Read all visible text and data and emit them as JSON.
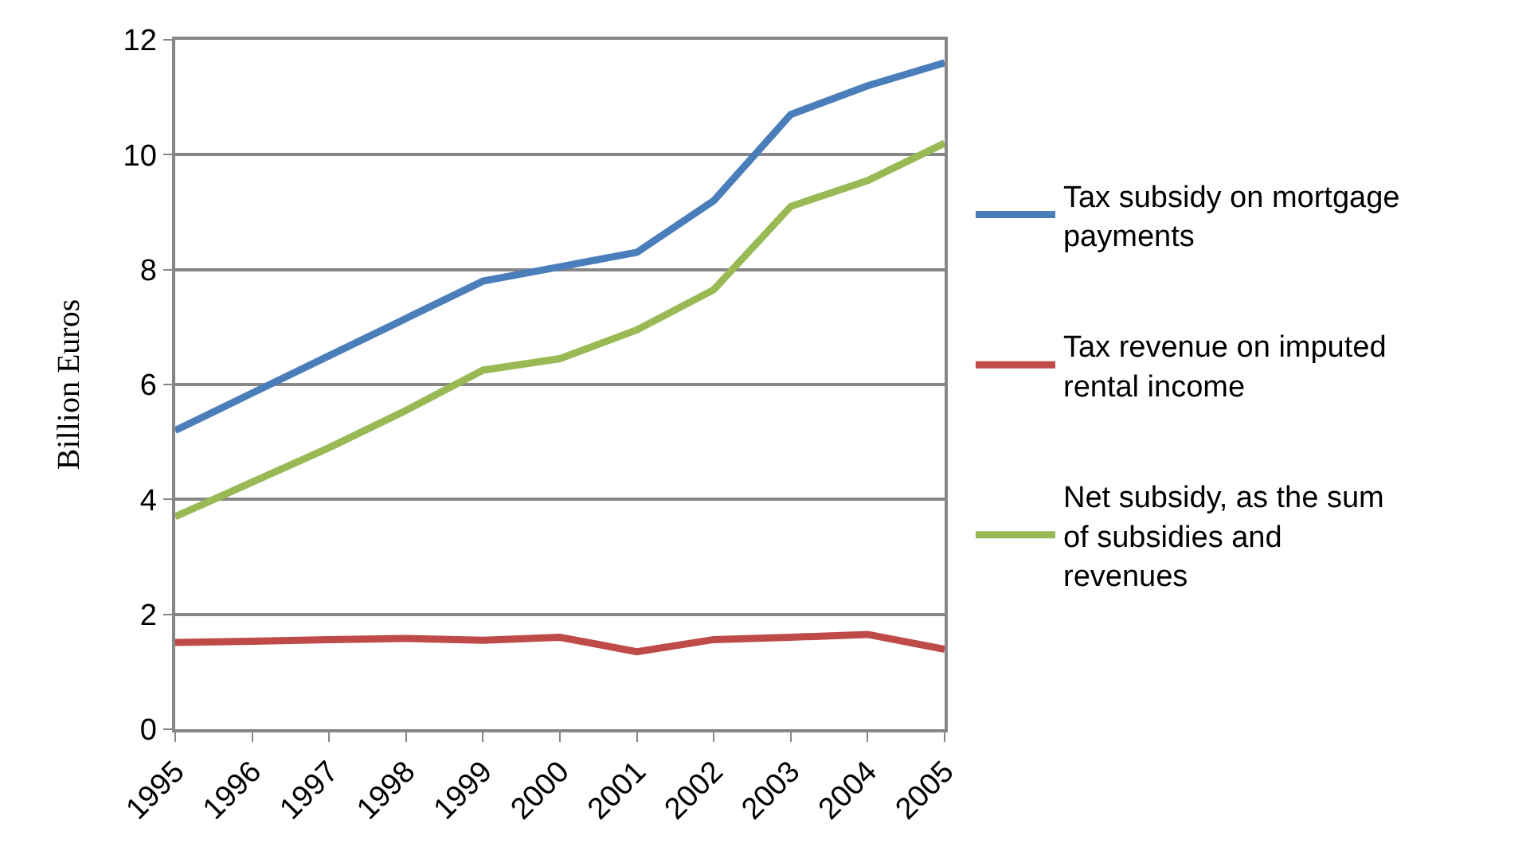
{
  "chart_data": {
    "type": "line",
    "ylabel": "Billion Euros",
    "categories": [
      "1995",
      "1996",
      "1997",
      "1998",
      "1999",
      "2000",
      "2001",
      "2002",
      "2003",
      "2004",
      "2005"
    ],
    "series": [
      {
        "name": "Tax subsidy on mortgage payments",
        "color": "#4a7ebb",
        "values": [
          5.2,
          5.85,
          6.5,
          7.15,
          7.8,
          8.05,
          8.3,
          9.2,
          10.7,
          11.2,
          11.6
        ]
      },
      {
        "name": "Tax revenue on imputed rental income",
        "color": "#be4b48",
        "values": [
          1.51,
          1.53,
          1.56,
          1.58,
          1.55,
          1.6,
          1.35,
          1.56,
          1.6,
          1.65,
          1.39
        ]
      },
      {
        "name": "Net subsidy, as the sum of subsidies and revenues",
        "color": "#98b954",
        "values": [
          3.7,
          4.3,
          4.9,
          5.55,
          6.25,
          6.45,
          6.95,
          7.65,
          9.1,
          9.55,
          10.2
        ]
      }
    ],
    "ylim": [
      0,
      12
    ],
    "yticks": [
      0,
      2,
      4,
      6,
      8,
      10,
      12
    ],
    "grid": "y",
    "legend": "right",
    "marker": "none",
    "line_style": "solid"
  }
}
